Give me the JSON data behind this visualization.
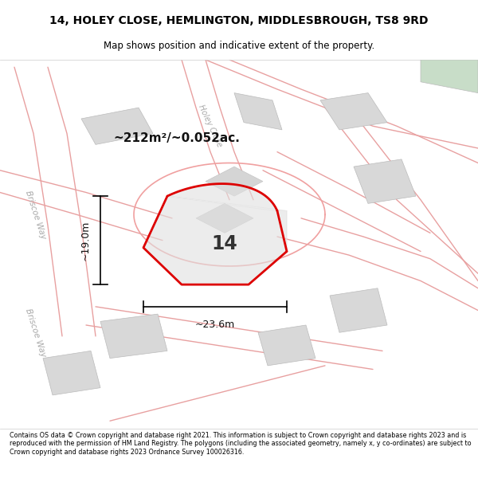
{
  "title_line1": "14, HOLEY CLOSE, HEMLINGTON, MIDDLESBROUGH, TS8 9RD",
  "title_line2": "Map shows position and indicative extent of the property.",
  "footer": "Contains OS data © Crown copyright and database right 2021. This information is subject to Crown copyright and database rights 2023 and is reproduced with the permission of HM Land Registry. The polygons (including the associated geometry, namely x, y co-ordinates) are subject to Crown copyright and database rights 2023 Ordnance Survey 100026316.",
  "area_label": "~212m²/~0.052ac.",
  "width_label": "~23.6m",
  "height_label": "~19.0m",
  "property_label": "14",
  "property_color": "#dd0000",
  "road_color": "#e8a0a0",
  "building_color": "#d8d8d8",
  "road_label_color": "#aaaaaa"
}
